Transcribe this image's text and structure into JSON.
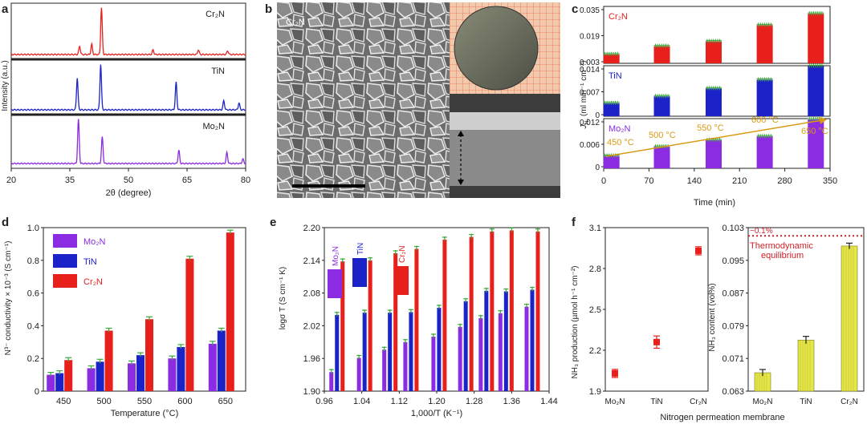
{
  "panels": {
    "a": "a",
    "b": "b",
    "c": "c",
    "d": "d",
    "e": "e",
    "f": "f"
  },
  "colors": {
    "red": "#e8201c",
    "blue": "#1a22c8",
    "purple": "#8b2be2",
    "green": "#3aa83a",
    "orange": "#d99a14",
    "yellow": "#e6e64a",
    "dashed_red": "#d0202a"
  },
  "sem": {
    "label": "Cr₂N",
    "image_desc": ""
  },
  "chart_data": [
    {
      "id": "a",
      "type": "line",
      "xlabel": "2θ (degree)",
      "ylabel": "Intensity (a.u.)",
      "xlim": [
        20,
        80
      ],
      "xticks": [
        20,
        35,
        50,
        65,
        80
      ],
      "series": [
        {
          "name": "Cr₂N",
          "color": "#e8201c",
          "peaks": [
            [
              37.5,
              0.18
            ],
            [
              40.6,
              0.22
            ],
            [
              43.1,
              1.0
            ],
            [
              56.3,
              0.1
            ],
            [
              67.9,
              0.1
            ],
            [
              75.4,
              0.08
            ]
          ]
        },
        {
          "name": "TiN",
          "color": "#1a22c8",
          "peaks": [
            [
              36.9,
              0.7
            ],
            [
              42.9,
              1.0
            ],
            [
              62.2,
              0.6
            ],
            [
              74.4,
              0.2
            ],
            [
              78.3,
              0.15
            ]
          ]
        },
        {
          "name": "Mo₂N",
          "color": "#8b2be2",
          "peaks": [
            [
              37.2,
              1.0
            ],
            [
              43.3,
              0.6
            ],
            [
              62.9,
              0.3
            ],
            [
              75.2,
              0.25
            ],
            [
              79.3,
              0.1
            ]
          ]
        }
      ]
    },
    {
      "id": "c",
      "type": "bar",
      "xlabel": "Time (min)",
      "ylabel": "J",
      "ylabel_sub": "N₂",
      "ylabel_units": " (ml min⁻¹ cm⁻²)",
      "xlim": [
        0,
        350
      ],
      "xticks": [
        0,
        70,
        140,
        210,
        280,
        350
      ],
      "bar_positions": [
        12,
        90,
        170,
        249,
        328
      ],
      "subplots": [
        {
          "name": "Cr₂N",
          "color": "#e8201c",
          "ylim": [
            0,
            0.035
          ],
          "yticks": [
            "0.003",
            "0.019",
            "0.035"
          ],
          "values": [
            0.0055,
            0.0105,
            0.0135,
            0.0235,
            0.0305
          ]
        },
        {
          "name": "TiN",
          "color": "#1a22c8",
          "ylim": [
            0,
            0.014
          ],
          "yticks": [
            "0",
            "0.007",
            "0.014"
          ],
          "values": [
            0.0036,
            0.0055,
            0.0077,
            0.0101,
            0.0139
          ]
        },
        {
          "name": "Mo₂N",
          "color": "#8b2be2",
          "ylim": [
            0,
            0.012
          ],
          "yticks": [
            "0",
            "0.006",
            "0.012"
          ],
          "values": [
            0.003,
            0.0052,
            0.0068,
            0.0077,
            0.0118
          ]
        }
      ],
      "temperature_labels": [
        "450 °C",
        "500 °C",
        "550 °C",
        "600 °C",
        "650 °C"
      ]
    },
    {
      "id": "d",
      "type": "bar",
      "xlabel": "Temperature (°C)",
      "ylabel": "N³⁻ conductivity × 10⁻³ (S cm⁻¹)",
      "categories": [
        "450",
        "500",
        "550",
        "600",
        "650"
      ],
      "ylim": [
        0,
        1.0
      ],
      "yticks": [
        "0",
        "0.2",
        "0.4",
        "0.6",
        "0.8",
        "1.0"
      ],
      "series": [
        {
          "name": "Mo₂N",
          "color": "#8b2be2",
          "values": [
            0.1,
            0.14,
            0.17,
            0.2,
            0.29
          ]
        },
        {
          "name": "TiN",
          "color": "#1a22c8",
          "values": [
            0.11,
            0.18,
            0.22,
            0.27,
            0.37
          ]
        },
        {
          "name": "Cr₂N",
          "color": "#e8201c",
          "values": [
            0.19,
            0.37,
            0.44,
            0.81,
            0.97
          ]
        }
      ],
      "legend": "top-left"
    },
    {
      "id": "e",
      "type": "bar",
      "xlabel": "1,000/T (K⁻¹)",
      "ylabel": "logσ T (S cm⁻¹ K)",
      "xlim": [
        0.96,
        1.44
      ],
      "xticks": [
        "0.96",
        "1.04",
        "1.12",
        "1.20",
        "1.28",
        "1.36",
        "1.44"
      ],
      "ylim": [
        1.9,
        2.2
      ],
      "yticks": [
        "1.90",
        "1.96",
        "2.02",
        "2.08",
        "2.14",
        "2.20"
      ],
      "groups_x": [
        0.987,
        1.046,
        1.1,
        1.145,
        1.205,
        1.262,
        1.306,
        1.348,
        1.404
      ],
      "series": [
        {
          "name": "Mo₂N",
          "color": "#8b2be2",
          "values": [
            1.935,
            1.961,
            1.976,
            1.99,
            2.0,
            2.018,
            2.034,
            2.043,
            2.055
          ]
        },
        {
          "name": "TiN",
          "color": "#1a22c8",
          "values": [
            2.04,
            2.044,
            2.044,
            2.045,
            2.053,
            2.065,
            2.084,
            2.083,
            2.086
          ]
        },
        {
          "name": "Cr₂N",
          "color": "#e8201c",
          "values": [
            2.138,
            2.14,
            2.153,
            2.161,
            2.178,
            2.183,
            2.193,
            2.195,
            2.193
          ]
        }
      ]
    },
    {
      "id": "f1",
      "type": "scatter",
      "xlabel": "",
      "ylabel": "NH₃ production (µmol h⁻¹ cm⁻²)",
      "categories": [
        "Mo₂N",
        "TiN",
        "Cr₂N"
      ],
      "ylim": [
        1.9,
        3.1
      ],
      "yticks": [
        "1.9",
        "2.2",
        "2.5",
        "2.8",
        "3.1"
      ],
      "values": [
        2.03,
        2.26,
        2.93
      ],
      "errors": [
        0.03,
        0.045,
        0.03
      ]
    },
    {
      "id": "f2",
      "type": "bar",
      "ylabel": "NH₃ content (vol%)",
      "categories": [
        "Mo₂N",
        "TiN",
        "Cr₂N"
      ],
      "ylim": [
        0.063,
        0.103
      ],
      "yticks": [
        "0.063",
        "0.071",
        "0.079",
        "0.087",
        "0.095",
        "0.103"
      ],
      "values": [
        0.0675,
        0.0755,
        0.0985
      ],
      "errors": [
        0.0008,
        0.0009,
        0.0007
      ],
      "annotation_value": "~0.1%",
      "annotation_text": [
        "Thermodynamic",
        "equilibrium"
      ],
      "threshold": 0.101
    }
  ],
  "shared_xlabel_f": "Nitrogen permeation membrane"
}
